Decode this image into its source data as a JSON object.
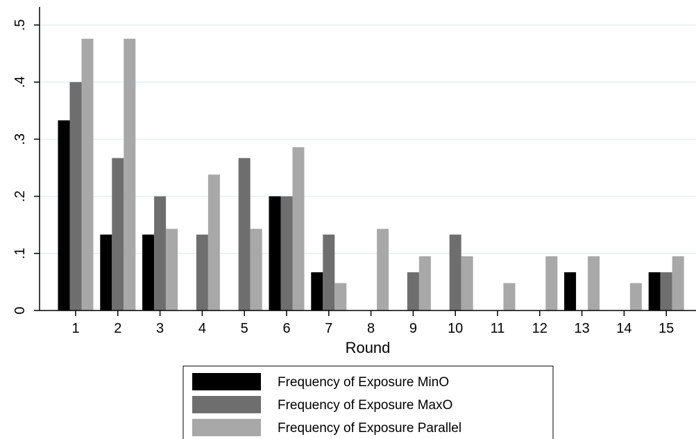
{
  "chart_data": {
    "type": "bar",
    "title": "",
    "xlabel": "Round",
    "ylabel": "",
    "categories": [
      "1",
      "2",
      "3",
      "4",
      "5",
      "6",
      "7",
      "8",
      "9",
      "10",
      "11",
      "12",
      "13",
      "14",
      "15"
    ],
    "ylim": [
      0,
      0.5
    ],
    "yticks": [
      0,
      0.1,
      0.2,
      0.3,
      0.4,
      0.5
    ],
    "ytick_labels": [
      "0",
      ".1",
      ".2",
      ".3",
      ".4",
      ".5"
    ],
    "grid": true,
    "legend_position": "bottom",
    "series": [
      {
        "name": "Frequency of Exposure MinO",
        "color": "#000000",
        "values": [
          0.333,
          0.133,
          0.133,
          0,
          0,
          0.2,
          0.067,
          0,
          0,
          0,
          0,
          0,
          0.067,
          0,
          0.067
        ]
      },
      {
        "name": "Frequency of Exposure MaxO",
        "color": "#6e6e6e",
        "values": [
          0.4,
          0.267,
          0.2,
          0.133,
          0.267,
          0.2,
          0.133,
          0,
          0.067,
          0.133,
          0,
          0,
          0,
          0,
          0.067
        ]
      },
      {
        "name": "Frequency of Exposure Parallel",
        "color": "#a8a8a8",
        "values": [
          0.476,
          0.476,
          0.143,
          0.238,
          0.143,
          0.286,
          0.048,
          0.143,
          0.095,
          0.095,
          0.048,
          0.095,
          0.095,
          0.048,
          0.095
        ]
      }
    ]
  }
}
